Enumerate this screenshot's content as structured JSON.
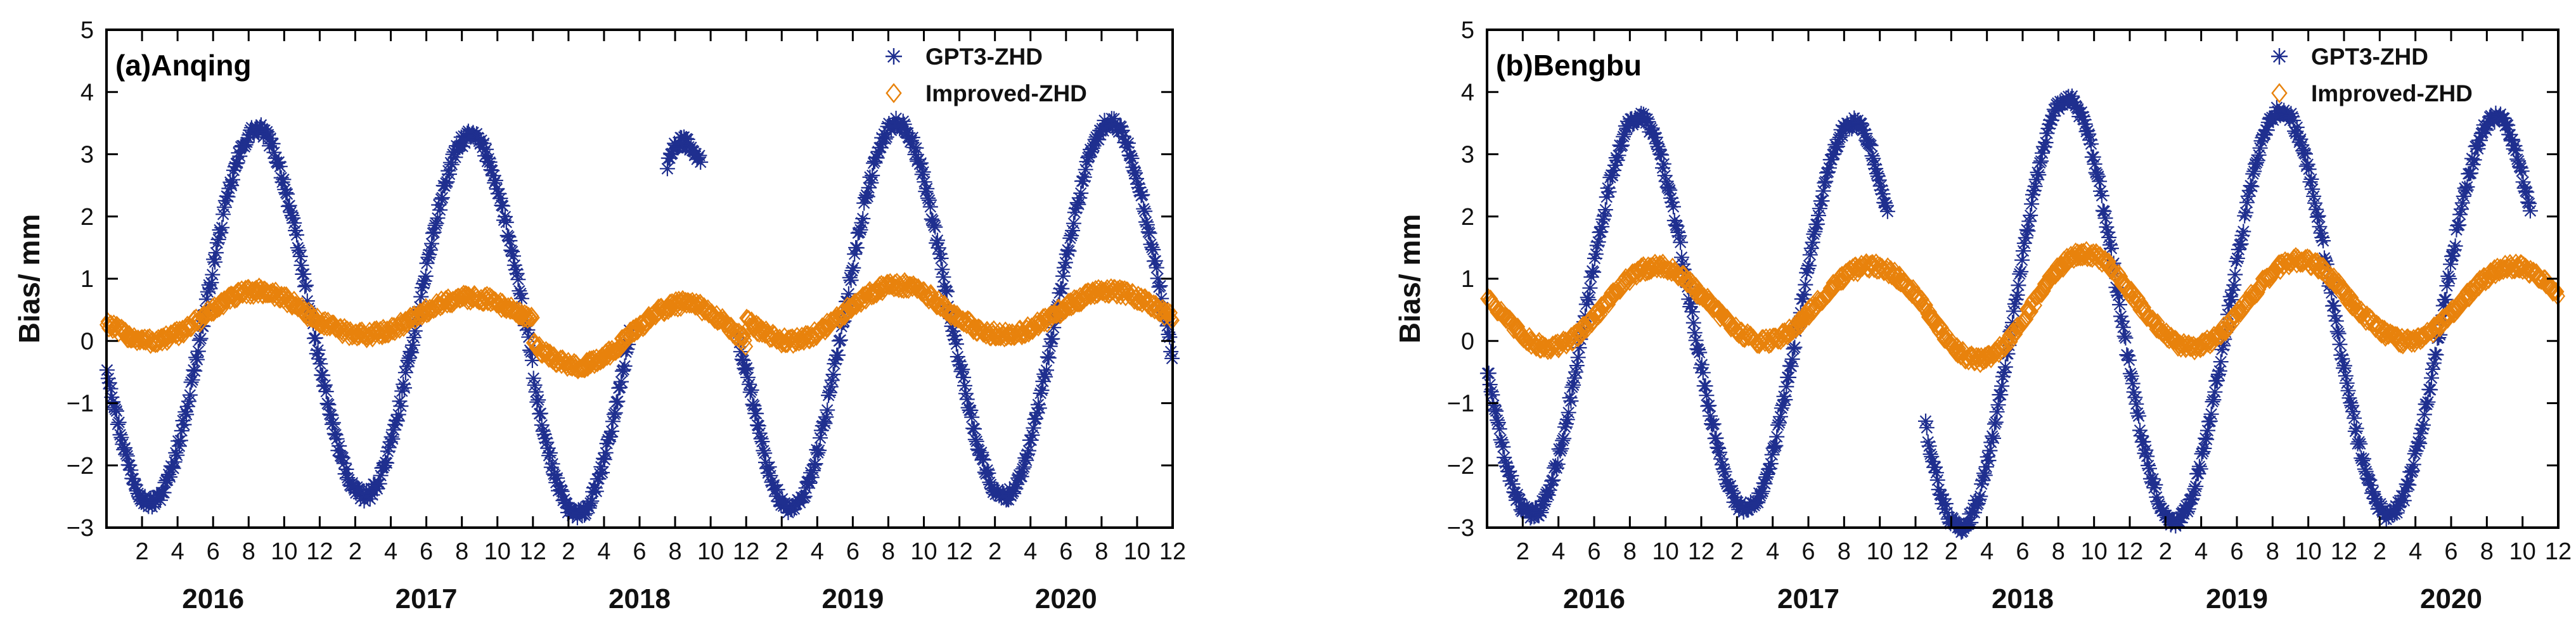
{
  "chart_data": [
    {
      "type": "scatter",
      "title": "(a)Anqing",
      "ylabel": "Bias/ mm",
      "xlabel": "",
      "ylim": [
        -3,
        5
      ],
      "yticks": [
        -3,
        -2,
        -1,
        0,
        1,
        2,
        3,
        4,
        5
      ],
      "ytick_labels": [
        "−3",
        "−2",
        "−1",
        "0",
        "1",
        "2",
        "3",
        "4",
        "5"
      ],
      "xlim_months": [
        0,
        60
      ],
      "month_ticks": [
        "2",
        "4",
        "6",
        "8",
        "10",
        "12"
      ],
      "years": [
        "2016",
        "2017",
        "2018",
        "2019",
        "2020"
      ],
      "grid": false,
      "legend_position": "top-right",
      "series": [
        {
          "name": "GPT3-ZHD",
          "marker": "asterisk",
          "color": "#1f2f8f",
          "amplitude": 3.0,
          "offset": 0.4,
          "peak_month": 8.5,
          "values_by_year": [
            {
              "year": "2016",
              "min": -2.6,
              "max": 3.4
            },
            {
              "year": "2017",
              "min": -2.5,
              "max": 3.3
            },
            {
              "year": "2018",
              "min": -2.8,
              "max": 3.2
            },
            {
              "year": "2019",
              "min": -2.7,
              "max": 3.5
            },
            {
              "year": "2020",
              "min": -2.5,
              "max": 3.5
            }
          ],
          "gaps": [
            [
              29.5,
              31.5
            ],
            [
              33.5,
              35.5
            ]
          ]
        },
        {
          "name": "Improved-ZHD",
          "marker": "diamond",
          "color": "#e8820c",
          "amplitude": 0.35,
          "offset": 0.4,
          "peak_month": 8.5,
          "values_by_year": [
            {
              "year": "2016",
              "min": 0.0,
              "max": 0.8
            },
            {
              "year": "2017",
              "min": 0.1,
              "max": 0.7
            },
            {
              "year": "2018",
              "min": -0.4,
              "max": 0.6
            },
            {
              "year": "2019",
              "min": 0.0,
              "max": 0.9
            },
            {
              "year": "2020",
              "min": 0.1,
              "max": 0.8
            }
          ]
        }
      ]
    },
    {
      "type": "scatter",
      "title": "(b)Bengbu",
      "ylabel": "Bias/ mm",
      "xlabel": "",
      "ylim": [
        -3,
        5
      ],
      "yticks": [
        -3,
        -2,
        -1,
        0,
        1,
        2,
        3,
        4,
        5
      ],
      "ytick_labels": [
        "−3",
        "−2",
        "−1",
        "0",
        "1",
        "2",
        "3",
        "4",
        "5"
      ],
      "xlim_months": [
        0,
        60
      ],
      "month_ticks": [
        "2",
        "4",
        "6",
        "8",
        "10",
        "12"
      ],
      "years": [
        "2016",
        "2017",
        "2018",
        "2019",
        "2020"
      ],
      "grid": false,
      "legend_position": "top-right",
      "series": [
        {
          "name": "GPT3-ZHD",
          "marker": "asterisk",
          "color": "#1f2f8f",
          "amplitude": 3.2,
          "offset": 0.4,
          "peak_month": 8.5,
          "values_by_year": [
            {
              "year": "2016",
              "min": -2.8,
              "max": 3.6
            },
            {
              "year": "2017",
              "min": -2.7,
              "max": 3.5
            },
            {
              "year": "2018",
              "min": -3.0,
              "max": 3.9
            },
            {
              "year": "2019",
              "min": -2.9,
              "max": 3.7
            },
            {
              "year": "2020",
              "min": -2.8,
              "max": 3.6
            }
          ],
          "gaps": [
            [
              22.5,
              24.5
            ],
            [
              58.5,
              60
            ]
          ]
        },
        {
          "name": "Improved-ZHD",
          "marker": "diamond",
          "color": "#e8820c",
          "amplitude": 0.65,
          "offset": 0.55,
          "peak_month": 9.5,
          "values_by_year": [
            {
              "year": "2016",
              "min": -0.1,
              "max": 1.2
            },
            {
              "year": "2017",
              "min": 0.0,
              "max": 1.2
            },
            {
              "year": "2018",
              "min": -0.3,
              "max": 1.4
            },
            {
              "year": "2019",
              "min": -0.1,
              "max": 1.3
            },
            {
              "year": "2020",
              "min": 0.0,
              "max": 1.2
            }
          ]
        }
      ]
    }
  ]
}
